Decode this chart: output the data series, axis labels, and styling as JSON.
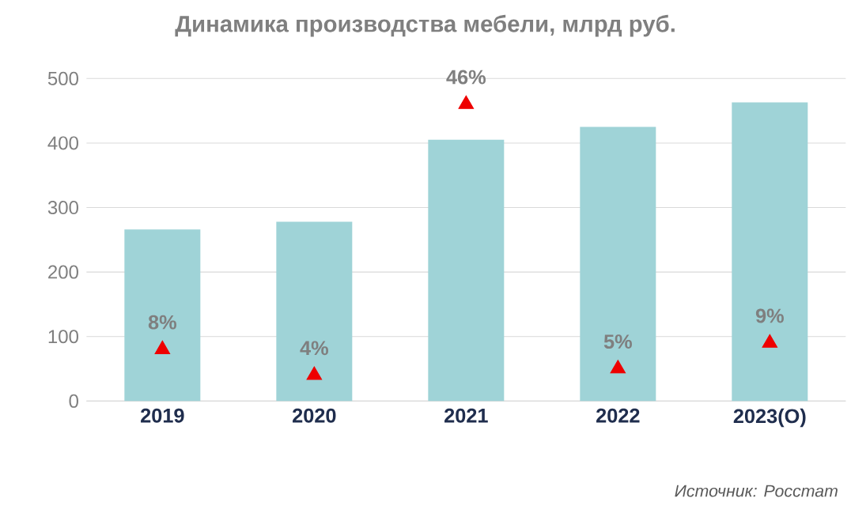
{
  "chart_data": {
    "type": "bar",
    "title": "Динамика производства мебели, млрд руб.",
    "categories": [
      "2019",
      "2020",
      "2021",
      "2022",
      "2023(О)"
    ],
    "series": [
      {
        "color": "#9fd3d7",
        "values": [
          266,
          278,
          405,
          425,
          463
        ]
      },
      {
        "type": "scatter",
        "axis": "y2",
        "color": "#ee0000",
        "marker": "triangle",
        "values": [
          8,
          4,
          46,
          5,
          9
        ],
        "value_labels": [
          "8%",
          "4%",
          "46%",
          "5%",
          "9%"
        ]
      }
    ],
    "ylim": [
      0,
      500
    ],
    "yticks": [
      0,
      100,
      200,
      300,
      400,
      500
    ],
    "y2lim": [
      0,
      50
    ],
    "grid": "y",
    "annotations": [
      "Источник: Росстат"
    ]
  }
}
